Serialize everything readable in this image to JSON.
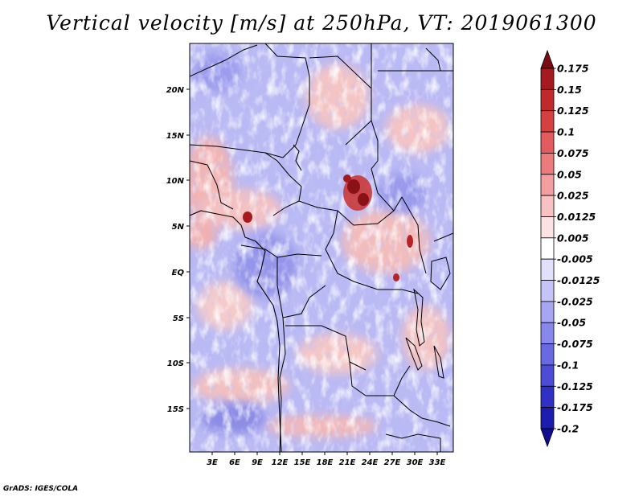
{
  "title": "Vertical velocity [m/s] at 250hPa, VT: 2019061300",
  "footer": "GrADS: IGES/COLA",
  "map": {
    "lon_ticks": [
      "3E",
      "6E",
      "9E",
      "12E",
      "15E",
      "18E",
      "21E",
      "24E",
      "27E",
      "30E",
      "33E"
    ],
    "lat_ticks": [
      "20N",
      "15N",
      "10N",
      "5N",
      "EQ",
      "5S",
      "10S",
      "15S"
    ],
    "lon_range": [
      0,
      35
    ],
    "lat_range": [
      -20,
      25
    ],
    "features": [
      "country-borders",
      "coastline",
      "lakes"
    ]
  },
  "colorbar": {
    "labels": [
      "0.175",
      "0.15",
      "0.125",
      "0.1",
      "0.075",
      "0.05",
      "0.025",
      "0.0125",
      "0.005",
      "-0.005",
      "-0.0125",
      "-0.025",
      "-0.05",
      "-0.075",
      "-0.1",
      "-0.125",
      "-0.175",
      "-0.2"
    ],
    "colors": [
      "#7a0b10",
      "#a51a1e",
      "#c12a2c",
      "#d54043",
      "#e35b5c",
      "#ec7c7c",
      "#f39f9f",
      "#f8c2c2",
      "#fce3e3",
      "#ffffff",
      "#e1e1fc",
      "#c4c4f8",
      "#a6a6f2",
      "#8787ec",
      "#6969e2",
      "#4c4cd6",
      "#3030c6",
      "#1c1cae",
      "#100d8c"
    ]
  },
  "highlights": [
    "strong-ascent-south-sudan",
    "ascent-cameroon",
    "ascent-great-lakes"
  ]
}
